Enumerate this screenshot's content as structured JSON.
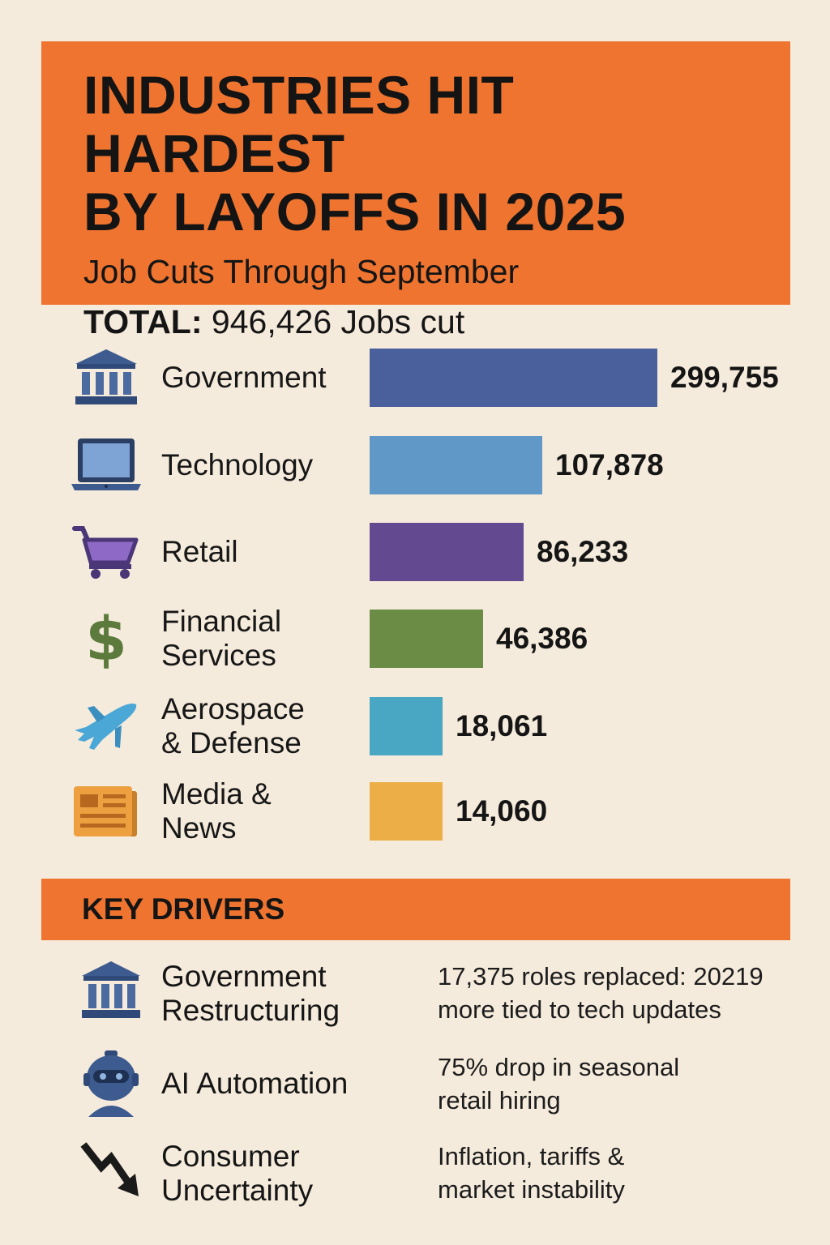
{
  "header": {
    "title_line1": "INDUSTRIES HIT HARDEST",
    "title_line2": "BY LAYOFFS IN 2025",
    "subtitle": "Job Cuts Through September",
    "total_label": "TOTAL:",
    "total_value": "946,426 Jobs cut"
  },
  "chart_data": {
    "type": "bar",
    "orientation": "horizontal",
    "title": "INDUSTRIES HIT HARDEST BY LAYOFFS IN 2025",
    "subtitle": "Job Cuts Through September",
    "categories": [
      "Government",
      "Technology",
      "Retail",
      "Financial Services",
      "Aerospace & Defense",
      "Media & News"
    ],
    "values": [
      299755,
      107878,
      86233,
      46386,
      18061,
      14060
    ],
    "value_labels": [
      "299,755",
      "107,878",
      "86,233",
      "46,386",
      "18,061",
      "14,060"
    ],
    "label_lines": [
      [
        "Government"
      ],
      [
        "Technology"
      ],
      [
        "Retail"
      ],
      [
        "Financial",
        "Services"
      ],
      [
        "Aerospace",
        "& Defense"
      ],
      [
        "Media &",
        "News"
      ]
    ],
    "colors": [
      "#4a609d",
      "#6098c8",
      "#634a90",
      "#6b8c45",
      "#4aa7c4",
      "#ecae47"
    ],
    "icons": [
      "bank-icon",
      "laptop-icon",
      "cart-icon",
      "dollar-icon",
      "airplane-icon",
      "newspaper-icon"
    ]
  },
  "drivers": {
    "heading": "KEY DRIVERS",
    "items": [
      {
        "line1": "Government",
        "line2": "Restructuring",
        "desc1": "17,375 roles replaced: 20219",
        "desc2": "more tied to tech updates",
        "icon": "bank-icon"
      },
      {
        "line1": "AI Automation",
        "line2": "",
        "desc1": "75% drop in seasonal",
        "desc2": "retail hiring",
        "icon": "robot-icon"
      },
      {
        "line1": "Consumer",
        "line2": "Uncertainty",
        "desc1": "Inflation, tariffs &",
        "desc2": "market instability",
        "icon": "trend-down-icon"
      }
    ]
  }
}
